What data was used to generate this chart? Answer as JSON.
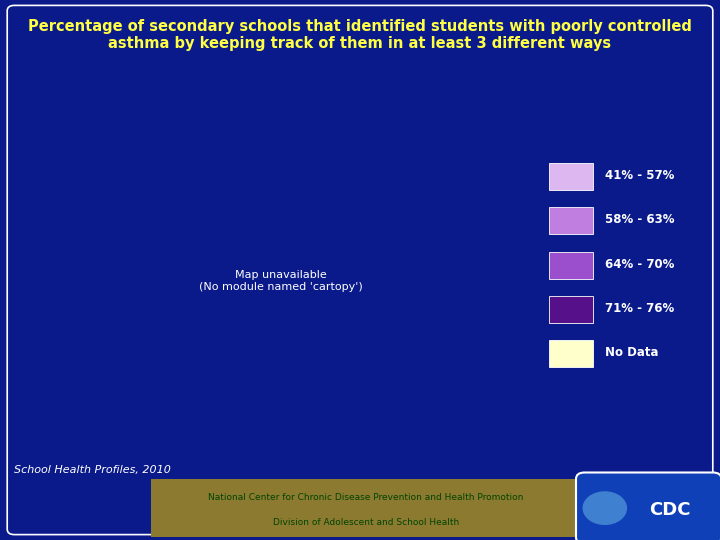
{
  "title_line1": "Percentage of secondary schools that identified students with poorly controlled",
  "title_line2": "asthma by keeping track of them in at least 3 different ways",
  "title_color": "#FFFF44",
  "title_fontsize": 10.5,
  "bg_color": "#0a1a8a",
  "legend_labels": [
    "41% - 57%",
    "58% - 63%",
    "64% - 70%",
    "71% - 76%",
    "No Data"
  ],
  "legend_colors": [
    "#ddb8f0",
    "#c07ee0",
    "#9b4fcc",
    "#55108a",
    "#ffffcc"
  ],
  "footer_text1": "School Health Profiles, 2010",
  "footer_text2": "National Center for Chronic Disease Prevention and Health Promotion",
  "footer_text3": "Division of Adolescent and School Health",
  "footer_bg": "#8b7a30",
  "state_colors": {
    "WA": "#55108a",
    "OR": "#c07ee0",
    "CA": "#9b4fcc",
    "NV": "#ddb8f0",
    "ID": "#ddb8f0",
    "MT": "#ddb8f0",
    "WY": "#ddb8f0",
    "UT": "#c07ee0",
    "AZ": "#c07ee0",
    "CO": "#ddb8f0",
    "NM": "#55108a",
    "ND": "#ddb8f0",
    "SD": "#ddb8f0",
    "NE": "#ddb8f0",
    "KS": "#c07ee0",
    "OK": "#c07ee0",
    "TX": "#c07ee0",
    "MN": "#ddb8f0",
    "IA": "#ddb8f0",
    "MO": "#c07ee0",
    "AR": "#c07ee0",
    "LA": "#c07ee0",
    "WI": "#ddb8f0",
    "IL": "#ffffcc",
    "IN": "#ddb8f0",
    "MI": "#ddb8f0",
    "OH": "#ddb8f0",
    "KY": "#9b4fcc",
    "TN": "#9b4fcc",
    "MS": "#c07ee0",
    "AL": "#c07ee0",
    "GA": "#55108a",
    "FL": "#c07ee0",
    "SC": "#c07ee0",
    "NC": "#9b4fcc",
    "VA": "#9b4fcc",
    "WV": "#c07ee0",
    "PA": "#55108a",
    "NY": "#55108a",
    "VT": "#55108a",
    "NH": "#55108a",
    "ME": "#55108a",
    "MA": "#55108a",
    "RI": "#55108a",
    "CT": "#55108a",
    "NJ": "#9b4fcc",
    "DE": "#9b4fcc",
    "MD": "#9b4fcc",
    "DC": "#9b4fcc",
    "AK": "#c07ee0",
    "HI": "#9b4fcc"
  }
}
